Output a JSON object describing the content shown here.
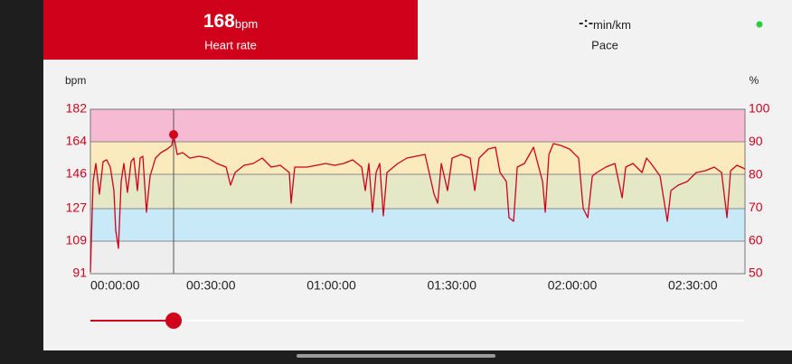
{
  "tabs": {
    "heart_rate": {
      "value": "168",
      "unit": "bpm",
      "label": "Heart rate"
    },
    "pace": {
      "value": "-:-",
      "unit": "min/km",
      "label": "Pace"
    }
  },
  "chart_data": {
    "type": "line",
    "ylabel": "bpm",
    "y2label": "%",
    "color": "#d0021b",
    "x": [
      0,
      41,
      81,
      135,
      189,
      243,
      297,
      351,
      378,
      419,
      459,
      500,
      554,
      608,
      648,
      703,
      743,
      784,
      838,
      892,
      973,
      1054,
      1148,
      1216,
      1243,
      1297,
      1378,
      1486,
      1621,
      1756,
      1891,
      2027,
      2094,
      2162,
      2297,
      2432,
      2567,
      2702,
      2837,
      2972,
      2999,
      3053,
      3242,
      3378,
      3513,
      3648,
      3783,
      3918,
      4053,
      4107,
      4161,
      4215,
      4269,
      4323,
      4377,
      4431,
      4593,
      4729,
      4864,
      4999,
      5134,
      5188,
      5242,
      5336,
      5404,
      5539,
      5674,
      5742,
      5809,
      5944,
      6052,
      6120,
      6215,
      6255,
      6323,
      6377,
      6485,
      6620,
      6755,
      6796,
      6850,
      6917,
      7025,
      7160,
      7295,
      7363,
      7431,
      7498,
      7566,
      7701,
      7836,
      7944,
      7998,
      8106,
      8241,
      8309,
      8376,
      8511,
      8619,
      8673,
      8782,
      8917,
      9052,
      9187,
      9322,
      9430,
      9511,
      9565,
      9660,
      9780
    ],
    "values": [
      92,
      142,
      152,
      135,
      153,
      154,
      150,
      137,
      115,
      105,
      142,
      152,
      136,
      153,
      155,
      137,
      155,
      156,
      125,
      145,
      155,
      158,
      160,
      162,
      168,
      157,
      158,
      155,
      156,
      155,
      152,
      150,
      140,
      147,
      151,
      152,
      155,
      150,
      151,
      147,
      130,
      150,
      150,
      151,
      152,
      151,
      152,
      154,
      150,
      137,
      152,
      125,
      147,
      152,
      123,
      147,
      152,
      155,
      156,
      157,
      135,
      130,
      152,
      137,
      155,
      157,
      155,
      137,
      155,
      160,
      161,
      147,
      142,
      122,
      120,
      150,
      152,
      161,
      142,
      125,
      157,
      163,
      162,
      160,
      155,
      127,
      122,
      145,
      147,
      150,
      152,
      133,
      150,
      152,
      147,
      155,
      152,
      145,
      120,
      137,
      140,
      142,
      147,
      148,
      150,
      147,
      122,
      148,
      151,
      149
    ],
    "xlim": [
      0,
      9780
    ],
    "xticks": [
      {
        "value": 0,
        "label": "00:00:00"
      },
      {
        "value": 1800,
        "label": "00:30:00"
      },
      {
        "value": 3600,
        "label": "01:00:00"
      },
      {
        "value": 5400,
        "label": "01:30:00"
      },
      {
        "value": 7200,
        "label": "02:00:00"
      },
      {
        "value": 9000,
        "label": "02:30:00"
      }
    ],
    "ylim": [
      91,
      182
    ],
    "yticks": [
      91,
      109,
      127,
      146,
      164,
      182
    ],
    "y2lim": [
      50,
      100
    ],
    "y2ticks": [
      50,
      60,
      70,
      80,
      90,
      100
    ],
    "grid": true,
    "bands": [
      {
        "from": 164,
        "to": 182,
        "color": "#f7bad3"
      },
      {
        "from": 146,
        "to": 164,
        "color": "#fbeabb"
      },
      {
        "from": 127,
        "to": 146,
        "color": "#e4e8c6"
      },
      {
        "from": 109,
        "to": 127,
        "color": "#c8e9f7"
      },
      {
        "from": 91,
        "to": 109,
        "color": "#eeeeee"
      }
    ],
    "cursor": {
      "x": 1243,
      "value": 168
    }
  }
}
